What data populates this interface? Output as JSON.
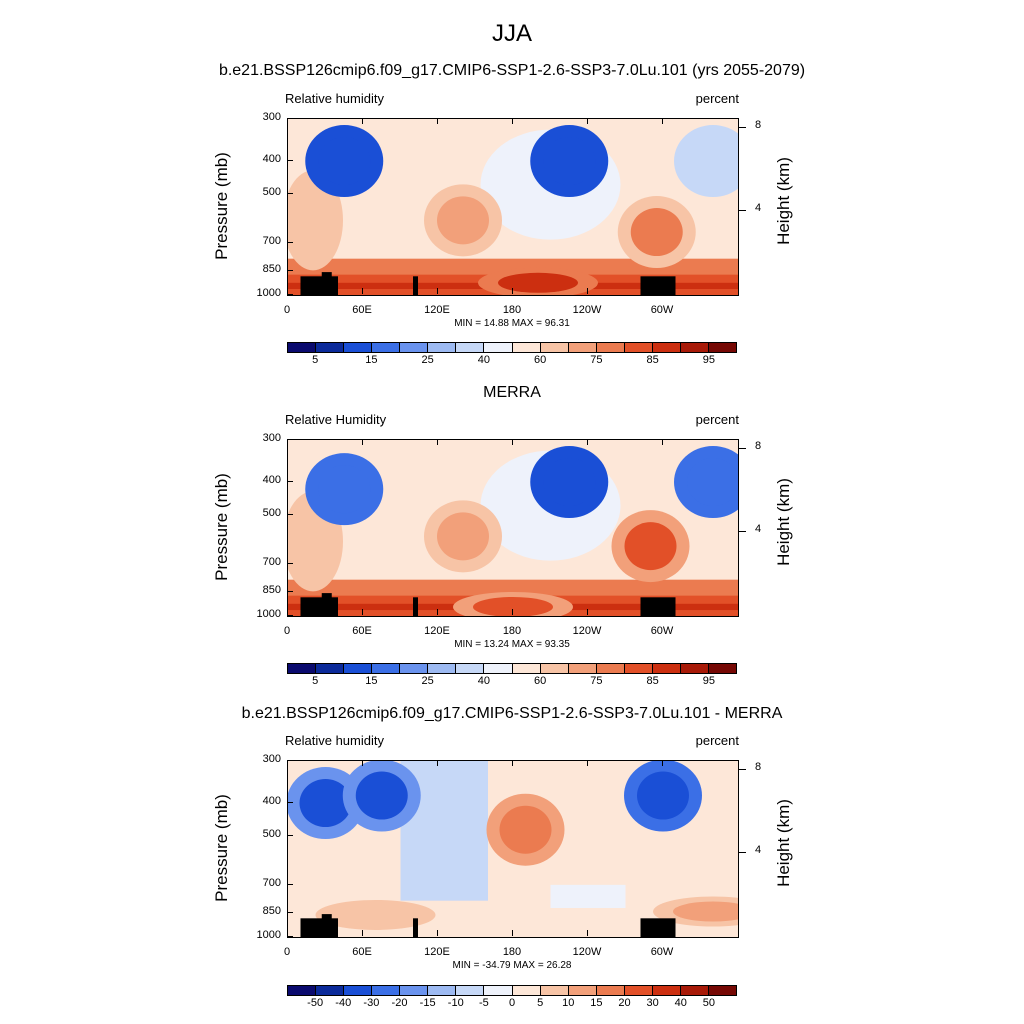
{
  "main_title": "JJA",
  "panels": [
    {
      "title": "b.e21.BSSP126cmip6.f09_g17.CMIP6-SSP1-2.6-SSP3-7.0Lu.101 (yrs 2055-2079)",
      "left_label": "Relative humidity",
      "right_label": "percent",
      "y_axis_label": "Pressure (mb)",
      "y2_axis_label": "Height (km)",
      "minmax": "MIN = 14.88  MAX = 96.31",
      "colorbar_labels": [
        "5",
        "15",
        "25",
        "40",
        "60",
        "75",
        "85",
        "95"
      ]
    },
    {
      "title": "MERRA",
      "left_label": "Relative Humidity",
      "right_label": "percent",
      "y_axis_label": "Pressure (mb)",
      "y2_axis_label": "Height (km)",
      "minmax": "MIN = 13.24  MAX = 93.35",
      "colorbar_labels": [
        "5",
        "15",
        "25",
        "40",
        "60",
        "75",
        "85",
        "95"
      ]
    },
    {
      "title": "b.e21.BSSP126cmip6.f09_g17.CMIP6-SSP1-2.6-SSP3-7.0Lu.101 - MERRA",
      "left_label": "Relative humidity",
      "right_label": "percent",
      "y_axis_label": "Pressure (mb)",
      "y2_axis_label": "Height (km)",
      "minmax": "MIN = -34.79  MAX = 26.28",
      "colorbar_labels": [
        "-50",
        "-40",
        "-30",
        "-20",
        "-15",
        "-10",
        "-5",
        "0",
        "5",
        "10",
        "15",
        "20",
        "30",
        "40",
        "50"
      ]
    }
  ],
  "y_ticks": [
    "300",
    "400",
    "500",
    "700",
    "850",
    "1000"
  ],
  "y_tick_values": [
    300,
    400,
    500,
    700,
    850,
    1000
  ],
  "x_ticks": [
    "0",
    "60E",
    "120E",
    "180",
    "120W",
    "60W"
  ],
  "x_tick_values": [
    0,
    60,
    120,
    180,
    240,
    300
  ],
  "height_ticks": [
    "8",
    "4"
  ],
  "height_tick_values": [
    8,
    4
  ],
  "colors": {
    "scale16": [
      "#0a0a6e",
      "#0b2a9a",
      "#1a4fd6",
      "#3b6fe6",
      "#6a93ee",
      "#9dbaf2",
      "#c6d8f7",
      "#eef2fb",
      "#fde7d8",
      "#f7c4a6",
      "#f2a07a",
      "#eb7b50",
      "#e25028",
      "#cc2f10",
      "#a81a08",
      "#760804"
    ],
    "terrain": "#000000"
  },
  "chart_data": [
    {
      "type": "heatmap",
      "title": "b.e21.BSSP126cmip6.f09_g17.CMIP6-SSP1-2.6-SSP3-7.0Lu.101 (yrs 2055-2079)",
      "variable": "Relative humidity",
      "units": "percent",
      "xlabel": "",
      "ylabel": "Pressure (mb)",
      "y2label": "Height (km)",
      "xlim": [
        0,
        360
      ],
      "ylim": [
        1000,
        300
      ],
      "min": 14.88,
      "max": 96.31,
      "levels": [
        5,
        10,
        15,
        20,
        25,
        30,
        40,
        50,
        60,
        70,
        75,
        80,
        85,
        90,
        95
      ],
      "features": [
        {
          "lon": 45,
          "p": 400,
          "value": 15
        },
        {
          "lon": 225,
          "p": 400,
          "value": 15
        },
        {
          "lon": 340,
          "p": 400,
          "value": 40
        },
        {
          "lon": 140,
          "p": 600,
          "value": 75
        },
        {
          "lon": 295,
          "p": 650,
          "value": 80
        },
        {
          "lon": 200,
          "p": 920,
          "value": 90
        }
      ]
    },
    {
      "type": "heatmap",
      "title": "MERRA",
      "variable": "Relative Humidity",
      "units": "percent",
      "xlabel": "",
      "ylabel": "Pressure (mb)",
      "y2label": "Height (km)",
      "xlim": [
        0,
        360
      ],
      "ylim": [
        1000,
        300
      ],
      "min": 13.24,
      "max": 93.35,
      "levels": [
        5,
        10,
        15,
        20,
        25,
        30,
        40,
        50,
        60,
        70,
        75,
        80,
        85,
        90,
        95
      ],
      "features": [
        {
          "lon": 45,
          "p": 420,
          "value": 20
        },
        {
          "lon": 225,
          "p": 400,
          "value": 15
        },
        {
          "lon": 340,
          "p": 400,
          "value": 20
        },
        {
          "lon": 140,
          "p": 580,
          "value": 75
        },
        {
          "lon": 290,
          "p": 620,
          "value": 85
        },
        {
          "lon": 180,
          "p": 940,
          "value": 85
        }
      ]
    },
    {
      "type": "heatmap",
      "title": "b.e21.BSSP126cmip6.f09_g17.CMIP6-SSP1-2.6-SSP3-7.0Lu.101 - MERRA",
      "variable": "Relative humidity",
      "units": "percent",
      "xlabel": "",
      "ylabel": "Pressure (mb)",
      "y2label": "Height (km)",
      "xlim": [
        0,
        360
      ],
      "ylim": [
        1000,
        300
      ],
      "min": -34.79,
      "max": 26.28,
      "levels": [
        -50,
        -40,
        -30,
        -20,
        -15,
        -10,
        -5,
        0,
        5,
        10,
        15,
        20,
        30,
        40,
        50
      ],
      "features": [
        {
          "lon": 30,
          "p": 400,
          "value": -30
        },
        {
          "lon": 75,
          "p": 380,
          "value": -30
        },
        {
          "lon": 300,
          "p": 380,
          "value": -35
        },
        {
          "lon": 190,
          "p": 480,
          "value": 20
        },
        {
          "lon": 340,
          "p": 840,
          "value": 15
        },
        {
          "lon": 70,
          "p": 860,
          "value": 10
        }
      ]
    }
  ]
}
